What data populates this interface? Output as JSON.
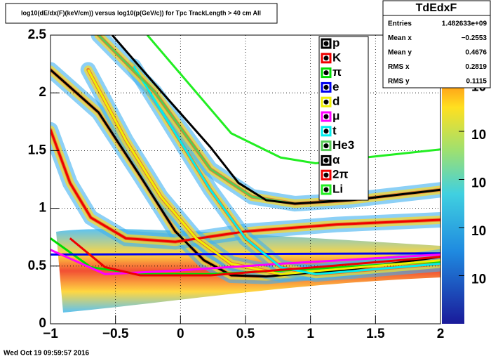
{
  "chart_data": {
    "type": "line",
    "title": "log10(dE/dx(F)(keV/cm)) versus log10(p(GeV/c)) for Tpc TrackLength > 40 cm All",
    "footer": "Wed Oct 19 09:59:57 2016",
    "stats": {
      "name": "TdEdxF",
      "rows": [
        {
          "label": "Entries",
          "value": "1.482633e+09"
        },
        {
          "label": "Mean x",
          "value": "−0.2553"
        },
        {
          "label": "Mean y",
          "value": "0.4676"
        },
        {
          "label": "RMS x",
          "value": "0.2819"
        },
        {
          "label": "RMS y",
          "value": "0.1115"
        }
      ]
    },
    "xlim": [
      -1,
      2
    ],
    "ylim": [
      0,
      2.5
    ],
    "xticks": [
      {
        "value": -1,
        "label": "−1"
      },
      {
        "value": -0.5,
        "label": "−0.5"
      },
      0,
      0.5,
      1,
      1.5,
      2
    ],
    "yticks": [
      0,
      0.5,
      1,
      1.5,
      2,
      2.5
    ],
    "zlim": [
      100,
      100000000
    ],
    "zlog": true,
    "zticks": [
      {
        "value": 10000000,
        "label": "10"
      },
      {
        "value": 1000000,
        "label": "10"
      },
      {
        "value": 100000,
        "label": "10"
      },
      {
        "value": 10000,
        "label": "10"
      },
      {
        "value": 1000,
        "label": "10"
      }
    ],
    "grid": true,
    "series": [
      {
        "name": "p",
        "color": "#000000",
        "x": [
          -1,
          -0.63,
          -0.31,
          -0.04,
          0.18,
          0.39,
          0.66,
          1.3,
          2
        ],
        "values": [
          2.2,
          1.83,
          1.28,
          0.8,
          0.55,
          0.42,
          0.41,
          0.47,
          0.58
        ]
      },
      {
        "name": "K",
        "color": "#ee0000",
        "x": [
          -1,
          -0.85,
          -0.69,
          -0.42,
          -0.04,
          0.5,
          1.2,
          2
        ],
        "values": [
          1.68,
          1.22,
          0.92,
          0.74,
          0.71,
          0.8,
          0.86,
          0.9
        ]
      },
      {
        "name": "π",
        "color": "#00dd00",
        "x": [
          -1,
          -0.69,
          -0.31,
          0.23,
          0.77,
          2
        ],
        "values": [
          0.74,
          0.49,
          0.43,
          0.43,
          0.46,
          0.54
        ]
      },
      {
        "name": "e",
        "color": "#0000ee",
        "x": [
          -1,
          2
        ],
        "values": [
          0.6,
          0.61
        ]
      },
      {
        "name": "d",
        "color": "#f0f000",
        "x": [
          -0.71,
          -0.42,
          -0.15,
          0.12,
          0.39,
          0.77,
          2
        ],
        "values": [
          2.2,
          1.59,
          1.1,
          0.74,
          0.52,
          0.43,
          0.55
        ]
      },
      {
        "name": "μ",
        "color": "#ff00ff",
        "x": [
          -1,
          -0.58,
          -0.04,
          0.77,
          2
        ],
        "values": [
          0.64,
          0.43,
          0.46,
          0.52,
          0.6
        ]
      },
      {
        "name": "t",
        "color": "#00eeee",
        "x": [
          -0.36,
          -0.04,
          0.23,
          0.5,
          0.77,
          1.04,
          2
        ],
        "values": [
          2.23,
          1.65,
          1.16,
          0.74,
          0.49,
          0.43,
          0.52
        ]
      },
      {
        "name": "He3",
        "color": "#55cc55",
        "x": [
          -0.63,
          -0.2,
          0.23,
          0.55,
          0.88,
          1.3,
          2
        ],
        "values": [
          2.5,
          2.01,
          1.34,
          1.1,
          1.04,
          1.07,
          1.16
        ]
      },
      {
        "name": "α",
        "color": "#000000",
        "x": [
          -0.525,
          -0.147,
          0.23,
          0.446,
          0.66,
          0.88,
          1.31,
          2
        ],
        "values": [
          2.5,
          2.01,
          1.53,
          1.22,
          1.07,
          1.04,
          1.07,
          1.16
        ]
      },
      {
        "name": "2π",
        "color": "#ee0000",
        "x": [
          -0.85,
          -0.58,
          -0.31,
          0.23,
          1.04,
          2
        ],
        "values": [
          0.74,
          0.49,
          0.42,
          0.42,
          0.49,
          0.58
        ]
      },
      {
        "name": "Li",
        "color": "#22ee22",
        "x": [
          -0.255,
          0.39,
          0.77,
          1.04,
          1.42,
          2
        ],
        "values": [
          2.5,
          1.65,
          1.44,
          1.39,
          1.44,
          1.51
        ]
      }
    ]
  }
}
